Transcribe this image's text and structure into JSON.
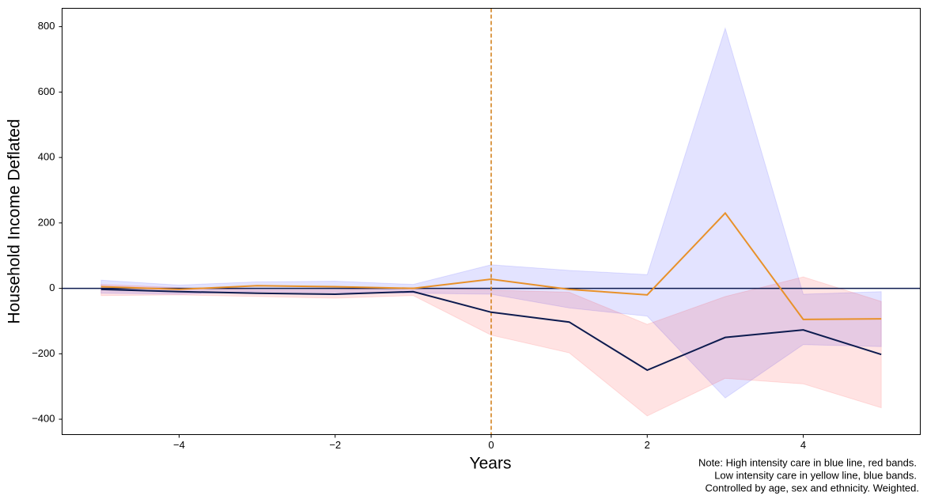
{
  "chart_data": {
    "type": "line",
    "x_label": "Years",
    "y_label": "Household Income Deflated",
    "note": [
      "Note: High intensity care in blue line, red bands.",
      "Low intensity care in yellow line, blue bands.",
      "Controlled by age, sex and ethnicity. Weighted."
    ],
    "x": [
      -5,
      -4,
      -3,
      -2,
      -1,
      0,
      1,
      2,
      3,
      4,
      5
    ],
    "xlim": [
      -5.5,
      5.5
    ],
    "ylim": [
      -447,
      856
    ],
    "xticks": [
      {
        "value": -4,
        "label": "−4"
      },
      {
        "value": -2,
        "label": "−2"
      },
      0,
      2,
      4
    ],
    "yticks": [
      {
        "value": -400,
        "label": "−400"
      },
      {
        "value": -200,
        "label": "−200"
      },
      0,
      200,
      400,
      600,
      800
    ],
    "bands": [
      {
        "color": "#0000ff",
        "opacity": 0.11,
        "upper": [
          25,
          10,
          20,
          22,
          12,
          72,
          55,
          42,
          795,
          -18,
          -10
        ],
        "lower": [
          -15,
          -18,
          -10,
          -13,
          -15,
          -18,
          -60,
          -85,
          -335,
          -172,
          -178
        ]
      },
      {
        "color": "#ff0000",
        "opacity": 0.11,
        "upper": [
          12,
          2,
          -5,
          -5,
          2,
          -5,
          -12,
          -110,
          -25,
          35,
          -40
        ],
        "lower": [
          -22,
          -20,
          -25,
          -30,
          -22,
          -143,
          -197,
          -390,
          -275,
          -292,
          -365
        ]
      }
    ],
    "series": [
      {
        "color": "#e8912a",
        "values": [
          5,
          -3,
          8,
          5,
          0,
          28,
          -3,
          -20,
          230,
          -95,
          -93
        ]
      },
      {
        "color": "#0d1b4f",
        "values": [
          -3,
          -10,
          -15,
          -18,
          -10,
          -73,
          -103,
          -250,
          -150,
          -127,
          -202
        ]
      }
    ],
    "vline": {
      "value": 0,
      "color": "#d07a10"
    },
    "hline": {
      "value": 0,
      "color": "#0d1b4f"
    }
  }
}
